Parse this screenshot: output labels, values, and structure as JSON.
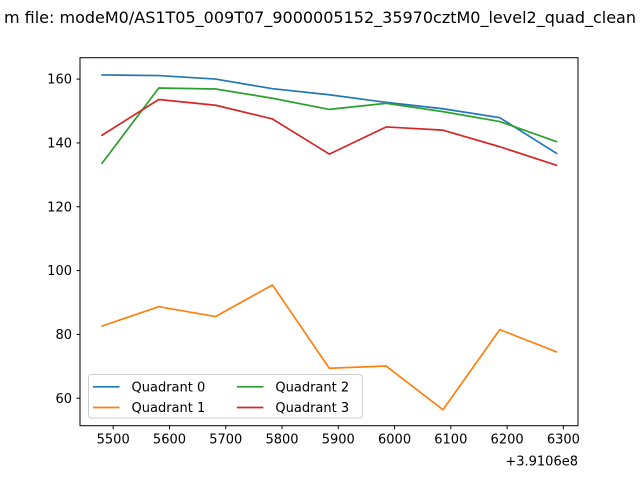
{
  "title": "m file: modeM0/AS1T05_009T07_9000005152_35970cztM0_level2_quad_clean",
  "colors": {
    "background": "#ffffff",
    "axes": "#000000",
    "legend_border": "#cccccc"
  },
  "chart_data": {
    "type": "line",
    "title": "m file: modeM0/AS1T05_009T07_9000005152_35970cztM0_level2_quad_clean",
    "xlabel": "",
    "ylabel": "",
    "x_offset_label": "+3.9106e8",
    "x": [
      5480,
      5581,
      5682,
      5783,
      5884,
      5985,
      6086,
      6187,
      6288
    ],
    "series": [
      {
        "name": "Quadrant 0",
        "color": "#1f77b4",
        "values": [
          161.3,
          161.1,
          160.0,
          157.0,
          155.1,
          152.7,
          150.7,
          147.9,
          136.7
        ]
      },
      {
        "name": "Quadrant 1",
        "color": "#ff7f0e",
        "values": [
          82.6,
          88.7,
          85.6,
          95.5,
          69.4,
          70.1,
          56.4,
          81.5,
          74.5
        ]
      },
      {
        "name": "Quadrant 2",
        "color": "#2ca02c",
        "values": [
          133.6,
          157.2,
          156.9,
          154.0,
          150.5,
          152.4,
          149.8,
          146.7,
          140.4
        ]
      },
      {
        "name": "Quadrant 3",
        "color": "#d62728",
        "values": [
          142.4,
          153.6,
          151.8,
          147.5,
          136.5,
          145.0,
          144.0,
          138.8,
          133.0
        ]
      }
    ],
    "xticks": [
      5500,
      5600,
      5700,
      5800,
      5900,
      6000,
      6100,
      6200,
      6300
    ],
    "yticks": [
      60,
      80,
      100,
      120,
      140,
      160
    ],
    "xlim": [
      5441,
      6326
    ],
    "ylim": [
      51.4,
      166.7
    ],
    "grid": false,
    "legend_position": "lower-left",
    "legend_columns": 2
  }
}
